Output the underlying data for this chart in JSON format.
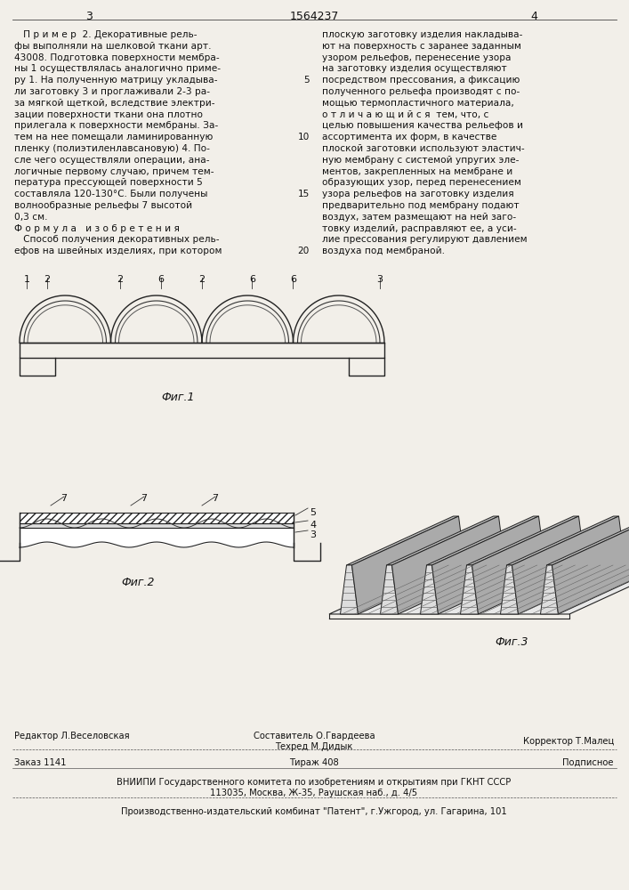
{
  "page_number_left": "3",
  "patent_number": "1564237",
  "page_number_right": "4",
  "bg_color": "#f2efe9",
  "text_color": "#1a1a1a",
  "fig1_caption": "Фиг.1",
  "fig2_caption": "Фиг.2",
  "fig3_caption": "Фиг.3",
  "left_column_text": [
    "   П р и м е р  2. Декоративные рель-",
    "фы выполняли на шелковой ткани арт.",
    "43008. Подготовка поверхности мембра-",
    "ны 1 осуществлялась аналогично приме-",
    "ру 1. На полученную матрицу укладыва-",
    "ли заготовку 3 и проглаживали 2-3 ра-",
    "за мягкой щеткой, вследствие электри-",
    "зации поверхности ткани она плотно",
    "прилегала к поверхности мембраны. За-",
    "тем на нее помещали ламинированную",
    "пленку (полиэтиленлавсановую) 4. По-",
    "сле чего осуществляли операции, ана-",
    "логичные первому случаю, причем тем-",
    "пература прессующей поверхности 5",
    "составляла 120-130°С. Были получены",
    "волнообразные рельефы 7 высотой",
    "0,3 см.",
    "Ф о р м у л а   и з о б р е т е н и я",
    "   Способ получения декоративных рель-",
    "ефов на швейных изделиях, при котором"
  ],
  "right_column_text": [
    "плоскую заготовку изделия накладыва-",
    "ют на поверхность с заранее заданным",
    "узором рельефов, перенесение узора",
    "на заготовку изделия осуществляют",
    "посредством прессования, а фиксацию",
    "полученного рельефа производят с по-",
    "мощью термопластичного материала,",
    "о т л и ч а ю щ и й с я  тем, что, с",
    "целью повышения качества рельефов и",
    "ассортимента их форм, в качестве",
    "плоской заготовки используют эластич-",
    "ную мембрану с системой упругих эле-",
    "ментов, закрепленных на мембране и",
    "образующих узор, перед перенесением",
    "узора рельефов на заготовку изделия",
    "предварительно под мембрану подают",
    "воздух, затем размещают на ней заго-",
    "товку изделий, расправляют ее, а уси-",
    "лие прессования регулируют давлением",
    "воздуха под мембраной."
  ],
  "footer_line1_left": "Редактор Л.Веселовская",
  "footer_line1_mid_top": "Составитель О.Гвардеева",
  "footer_line1_mid_bot": "Техред М.Дидык",
  "footer_line1_right": "Корректор Т.Малец",
  "footer_line2_left": "Заказ 1141",
  "footer_line2_mid": "Тираж 408",
  "footer_line2_right": "Подписное",
  "footer_vnipi": "ВНИИПИ Государственного комитета по изобретениям и открытиям при ГКНТ СССР",
  "footer_address": "113035, Москва, Ж-35, Раушская наб., д. 4/5",
  "footer_publisher": "Производственно-издательский комбинат \"Патент\", г.Ужгород, ул. Гагарина, 101"
}
